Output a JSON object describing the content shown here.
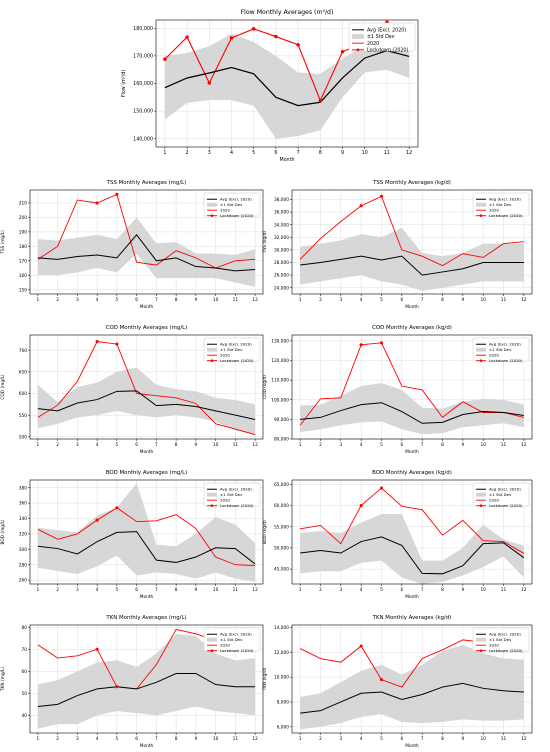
{
  "legend_labels": [
    "Avg (Excl. 2020)",
    "±1 Std Dev",
    "2020",
    "Lockdown (2020)"
  ],
  "colors": {
    "avg": "#000000",
    "band": "#d3d3d3",
    "y2020": "#ff0000",
    "grid": "#dddddd"
  },
  "chart_data": [
    {
      "type": "line",
      "title": "Flow Monthly Averages (m³/d)",
      "xlabel": "Month",
      "ylabel": "Flow (m³/d)",
      "x": [
        1,
        2,
        3,
        4,
        5,
        6,
        7,
        8,
        9,
        10,
        11,
        12
      ],
      "ylim": [
        137000,
        183000
      ],
      "yticks": [
        140000,
        150000,
        160000,
        170000,
        180000
      ],
      "ytick_labels": [
        "140,000",
        "150,000",
        "160,000",
        "170,000",
        "180,000"
      ],
      "legend_position": "top-right",
      "grid": true,
      "avg": [
        158500,
        162000,
        163800,
        165800,
        163500,
        155000,
        152000,
        153200,
        162000,
        169200,
        171900,
        169800
      ],
      "std_lower": [
        147000,
        153000,
        154000,
        154000,
        152000,
        140000,
        141000,
        143000,
        155000,
        164000,
        165000,
        162000
      ],
      "std_upper": [
        170000,
        171000,
        173500,
        178000,
        175000,
        170000,
        164000,
        163500,
        169000,
        174000,
        178500,
        177000
      ],
      "y2020": [
        null,
        null,
        null,
        null,
        null,
        null,
        null,
        null,
        null,
        null,
        null,
        null
      ],
      "lockdown_2020": [
        168800,
        176800,
        160200,
        176500,
        179800,
        177000,
        174000,
        153800,
        171500,
        175000,
        182200,
        178800
      ]
    },
    {
      "type": "line",
      "title": "TSS Monthly Averages (mg/L)",
      "xlabel": "Month",
      "ylabel": "TSS (mg/L)",
      "x": [
        1,
        2,
        3,
        4,
        5,
        6,
        7,
        8,
        9,
        10,
        11,
        12
      ],
      "ylim": [
        147,
        219
      ],
      "yticks": [
        150,
        160,
        170,
        180,
        190,
        200,
        210
      ],
      "ytick_labels": [
        "150",
        "160",
        "170",
        "180",
        "190",
        "200",
        "210"
      ],
      "legend_position": "top-right",
      "grid": true,
      "avg": [
        172,
        171,
        173,
        174,
        172,
        188,
        170,
        172,
        166,
        165,
        163,
        164
      ],
      "std_lower": [
        160,
        160,
        162,
        165,
        162,
        175,
        158,
        158,
        158,
        158,
        155,
        152
      ],
      "std_upper": [
        185,
        184,
        186,
        188,
        185,
        200,
        182,
        183,
        175,
        175,
        174,
        178
      ],
      "y2020": [
        171,
        180,
        212,
        210,
        216,
        169,
        167,
        177,
        172,
        165,
        170,
        171
      ],
      "lockdown_2020": [
        null,
        null,
        null,
        210,
        216,
        null,
        null,
        null,
        null,
        null,
        null,
        null
      ]
    },
    {
      "type": "line",
      "title": "TSS Monthly Averages (kg/d)",
      "xlabel": "Month",
      "ylabel": "TSS (kg/d)",
      "x": [
        1,
        2,
        3,
        4,
        5,
        6,
        7,
        8,
        9,
        10,
        11,
        12
      ],
      "ylim": [
        23000,
        39500
      ],
      "yticks": [
        24000,
        26000,
        28000,
        30000,
        32000,
        34000,
        36000,
        38000
      ],
      "ytick_labels": [
        "24,000",
        "26,000",
        "28,000",
        "30,000",
        "32,000",
        "34,000",
        "36,000",
        "38,000"
      ],
      "legend_position": "top-right",
      "grid": true,
      "avg": [
        27600,
        28000,
        28500,
        29000,
        28400,
        29000,
        26000,
        26500,
        27000,
        28000,
        28000,
        28000
      ],
      "std_lower": [
        24500,
        25000,
        25500,
        26000,
        25000,
        24500,
        23500,
        24000,
        24500,
        25000,
        25000,
        25000
      ],
      "std_upper": [
        30500,
        31000,
        31500,
        32500,
        32000,
        33500,
        29500,
        29000,
        29500,
        31000,
        31000,
        31000
      ],
      "y2020": [
        28500,
        31800,
        34500,
        37000,
        38500,
        30000,
        29000,
        27500,
        29400,
        28800,
        31000,
        31300
      ],
      "lockdown_2020": [
        null,
        null,
        null,
        37000,
        38500,
        null,
        null,
        null,
        null,
        null,
        null,
        null
      ]
    },
    {
      "type": "line",
      "title": "COD Monthly Averages (mg/L)",
      "xlabel": "Month",
      "ylabel": "COD (mg/L)",
      "x": [
        1,
        2,
        3,
        4,
        5,
        6,
        7,
        8,
        9,
        10,
        11,
        12
      ],
      "ylim": [
        495,
        735
      ],
      "yticks": [
        500,
        550,
        600,
        650,
        700
      ],
      "ytick_labels": [
        "500",
        "550",
        "600",
        "650",
        "700"
      ],
      "legend_position": "top-right",
      "grid": true,
      "avg": [
        565,
        560,
        578,
        586,
        605,
        606,
        572,
        575,
        570,
        560,
        550,
        540
      ],
      "std_lower": [
        520,
        530,
        545,
        550,
        560,
        550,
        545,
        550,
        545,
        535,
        515,
        505
      ],
      "std_upper": [
        620,
        580,
        615,
        625,
        650,
        660,
        620,
        610,
        605,
        590,
        585,
        575
      ],
      "y2020": [
        545,
        573,
        628,
        720,
        714,
        600,
        595,
        590,
        577,
        530,
        518,
        505
      ],
      "lockdown_2020": [
        null,
        null,
        null,
        720,
        714,
        null,
        null,
        null,
        null,
        null,
        null,
        null
      ]
    },
    {
      "type": "line",
      "title": "COD Monthly Averages (kg/d)",
      "xlabel": "Month",
      "ylabel": "COD (kg/d)",
      "x": [
        1,
        2,
        3,
        4,
        5,
        6,
        7,
        8,
        9,
        10,
        11,
        12
      ],
      "ylim": [
        80000,
        133000
      ],
      "yticks": [
        80000,
        90000,
        100000,
        110000,
        120000,
        130000
      ],
      "ytick_labels": [
        "80,000",
        "90,000",
        "100,000",
        "110,000",
        "120,000",
        "130,000"
      ],
      "legend_position": "top-right",
      "grid": true,
      "avg": [
        90000,
        91000,
        94500,
        97500,
        98500,
        94000,
        88000,
        88500,
        92500,
        94000,
        93500,
        92000
      ],
      "std_lower": [
        83500,
        85000,
        87000,
        88500,
        89000,
        85000,
        82500,
        83000,
        86000,
        87000,
        88000,
        86000
      ],
      "std_upper": [
        97000,
        97500,
        102000,
        107000,
        108500,
        105000,
        96000,
        95500,
        99000,
        100500,
        100000,
        97500
      ],
      "y2020": [
        87000,
        100500,
        101000,
        128000,
        129000,
        107000,
        105000,
        91000,
        99000,
        93500,
        93500,
        91000
      ],
      "lockdown_2020": [
        null,
        null,
        null,
        128000,
        129000,
        null,
        null,
        null,
        null,
        null,
        null,
        null
      ]
    },
    {
      "type": "line",
      "title": "BOD Monthly Averages (mg/L)",
      "xlabel": "Month",
      "ylabel": "BOD (mg/L)",
      "x": [
        1,
        2,
        3,
        4,
        5,
        6,
        7,
        8,
        9,
        10,
        11,
        12
      ],
      "ylim": [
        255,
        390
      ],
      "yticks": [
        260,
        280,
        300,
        320,
        340,
        360,
        380
      ],
      "ytick_labels": [
        "260",
        "280",
        "300",
        "320",
        "340",
        "360",
        "380"
      ],
      "legend_position": "top-right",
      "grid": true,
      "avg": [
        304,
        301,
        294,
        310,
        322,
        323,
        286,
        283,
        290,
        302,
        301,
        281
      ],
      "std_lower": [
        276,
        272,
        268,
        278,
        292,
        266,
        270,
        268,
        262,
        270,
        262,
        258
      ],
      "std_upper": [
        328,
        325,
        322,
        344,
        354,
        386,
        306,
        304,
        320,
        342,
        332,
        308
      ],
      "y2020": [
        326,
        313,
        320,
        338,
        354,
        336,
        337,
        345,
        327,
        290,
        280,
        279
      ],
      "lockdown_2020": [
        null,
        null,
        null,
        338,
        354,
        null,
        null,
        null,
        null,
        null,
        null,
        null
      ]
    },
    {
      "type": "line",
      "title": "BOD Monthly Averages (kg/d)",
      "xlabel": "Month",
      "ylabel": "BOD (kg/d)",
      "x": [
        1,
        2,
        3,
        4,
        5,
        6,
        7,
        8,
        9,
        10,
        11,
        12
      ],
      "ylim": [
        41500,
        66000
      ],
      "yticks": [
        45000,
        50000,
        55000,
        60000,
        65000
      ],
      "ytick_labels": [
        "45,000",
        "50,000",
        "55,000",
        "60,000",
        "65,000"
      ],
      "legend_position": "top-right",
      "grid": true,
      "avg": [
        48800,
        49400,
        48800,
        51500,
        52600,
        50600,
        44000,
        43900,
        45800,
        51000,
        51200,
        47700
      ],
      "std_lower": [
        44000,
        44500,
        44500,
        46500,
        47000,
        43000,
        41500,
        42000,
        43500,
        45500,
        48000,
        43000
      ],
      "std_upper": [
        53500,
        54000,
        53500,
        56000,
        58000,
        58000,
        47000,
        47000,
        50000,
        55500,
        52000,
        50500
      ],
      "y2020": [
        54500,
        55300,
        51000,
        60000,
        64100,
        59800,
        59000,
        53000,
        56500,
        51700,
        51500,
        48700
      ],
      "lockdown_2020": [
        null,
        null,
        null,
        60000,
        64100,
        null,
        null,
        null,
        null,
        null,
        null,
        null
      ]
    },
    {
      "type": "line",
      "title": "TKN Monthly Averages (mg/L)",
      "xlabel": "Month",
      "ylabel": "TKN (mg/L)",
      "x": [
        1,
        2,
        3,
        4,
        5,
        6,
        7,
        8,
        9,
        10,
        11,
        12
      ],
      "ylim": [
        32,
        81
      ],
      "yticks": [
        40,
        50,
        60,
        70,
        80
      ],
      "ytick_labels": [
        "40",
        "50",
        "60",
        "70",
        "80"
      ],
      "legend_position": "top-right",
      "grid": true,
      "avg": [
        44,
        45,
        49,
        52,
        53,
        52,
        55,
        59,
        59,
        54,
        53,
        53
      ],
      "std_lower": [
        34,
        36,
        36,
        40,
        42,
        41,
        40,
        42,
        44,
        42,
        41,
        40
      ],
      "std_upper": [
        54,
        56,
        60,
        64,
        65,
        62,
        68,
        77,
        76,
        68,
        65,
        66
      ],
      "y2020": [
        72,
        66,
        67,
        70,
        53,
        52,
        63,
        79,
        77,
        74,
        73,
        75
      ],
      "lockdown_2020": [
        null,
        null,
        null,
        70,
        53,
        null,
        null,
        null,
        null,
        null,
        null,
        null
      ]
    },
    {
      "type": "line",
      "title": "TKN Monthly Averages (kg/d)",
      "xlabel": "Month",
      "ylabel": "TKN (kg/d)",
      "x": [
        1,
        2,
        3,
        4,
        5,
        6,
        7,
        8,
        9,
        10,
        11,
        12
      ],
      "ylim": [
        5500,
        14200
      ],
      "yticks": [
        6000,
        8000,
        10000,
        12000,
        14000
      ],
      "ytick_labels": [
        "6,000",
        "8,000",
        "10,000",
        "12,000",
        "14,000"
      ],
      "legend_position": "top-right",
      "grid": true,
      "avg": [
        7100,
        7300,
        8000,
        8700,
        8800,
        8200,
        8600,
        9200,
        9500,
        9100,
        8900,
        8800
      ],
      "std_lower": [
        5800,
        6000,
        6300,
        6800,
        7000,
        6400,
        6300,
        6400,
        6600,
        6500,
        6500,
        6600
      ],
      "std_upper": [
        8400,
        8700,
        9600,
        10500,
        11000,
        10200,
        11000,
        12100,
        12600,
        11900,
        11500,
        11400
      ],
      "y2020": [
        12300,
        11500,
        11200,
        12500,
        9800,
        9200,
        11500,
        12200,
        13000,
        12800,
        13300,
        12900
      ],
      "lockdown_2020": [
        null,
        null,
        null,
        12500,
        9800,
        null,
        null,
        null,
        null,
        null,
        null,
        null
      ]
    }
  ]
}
